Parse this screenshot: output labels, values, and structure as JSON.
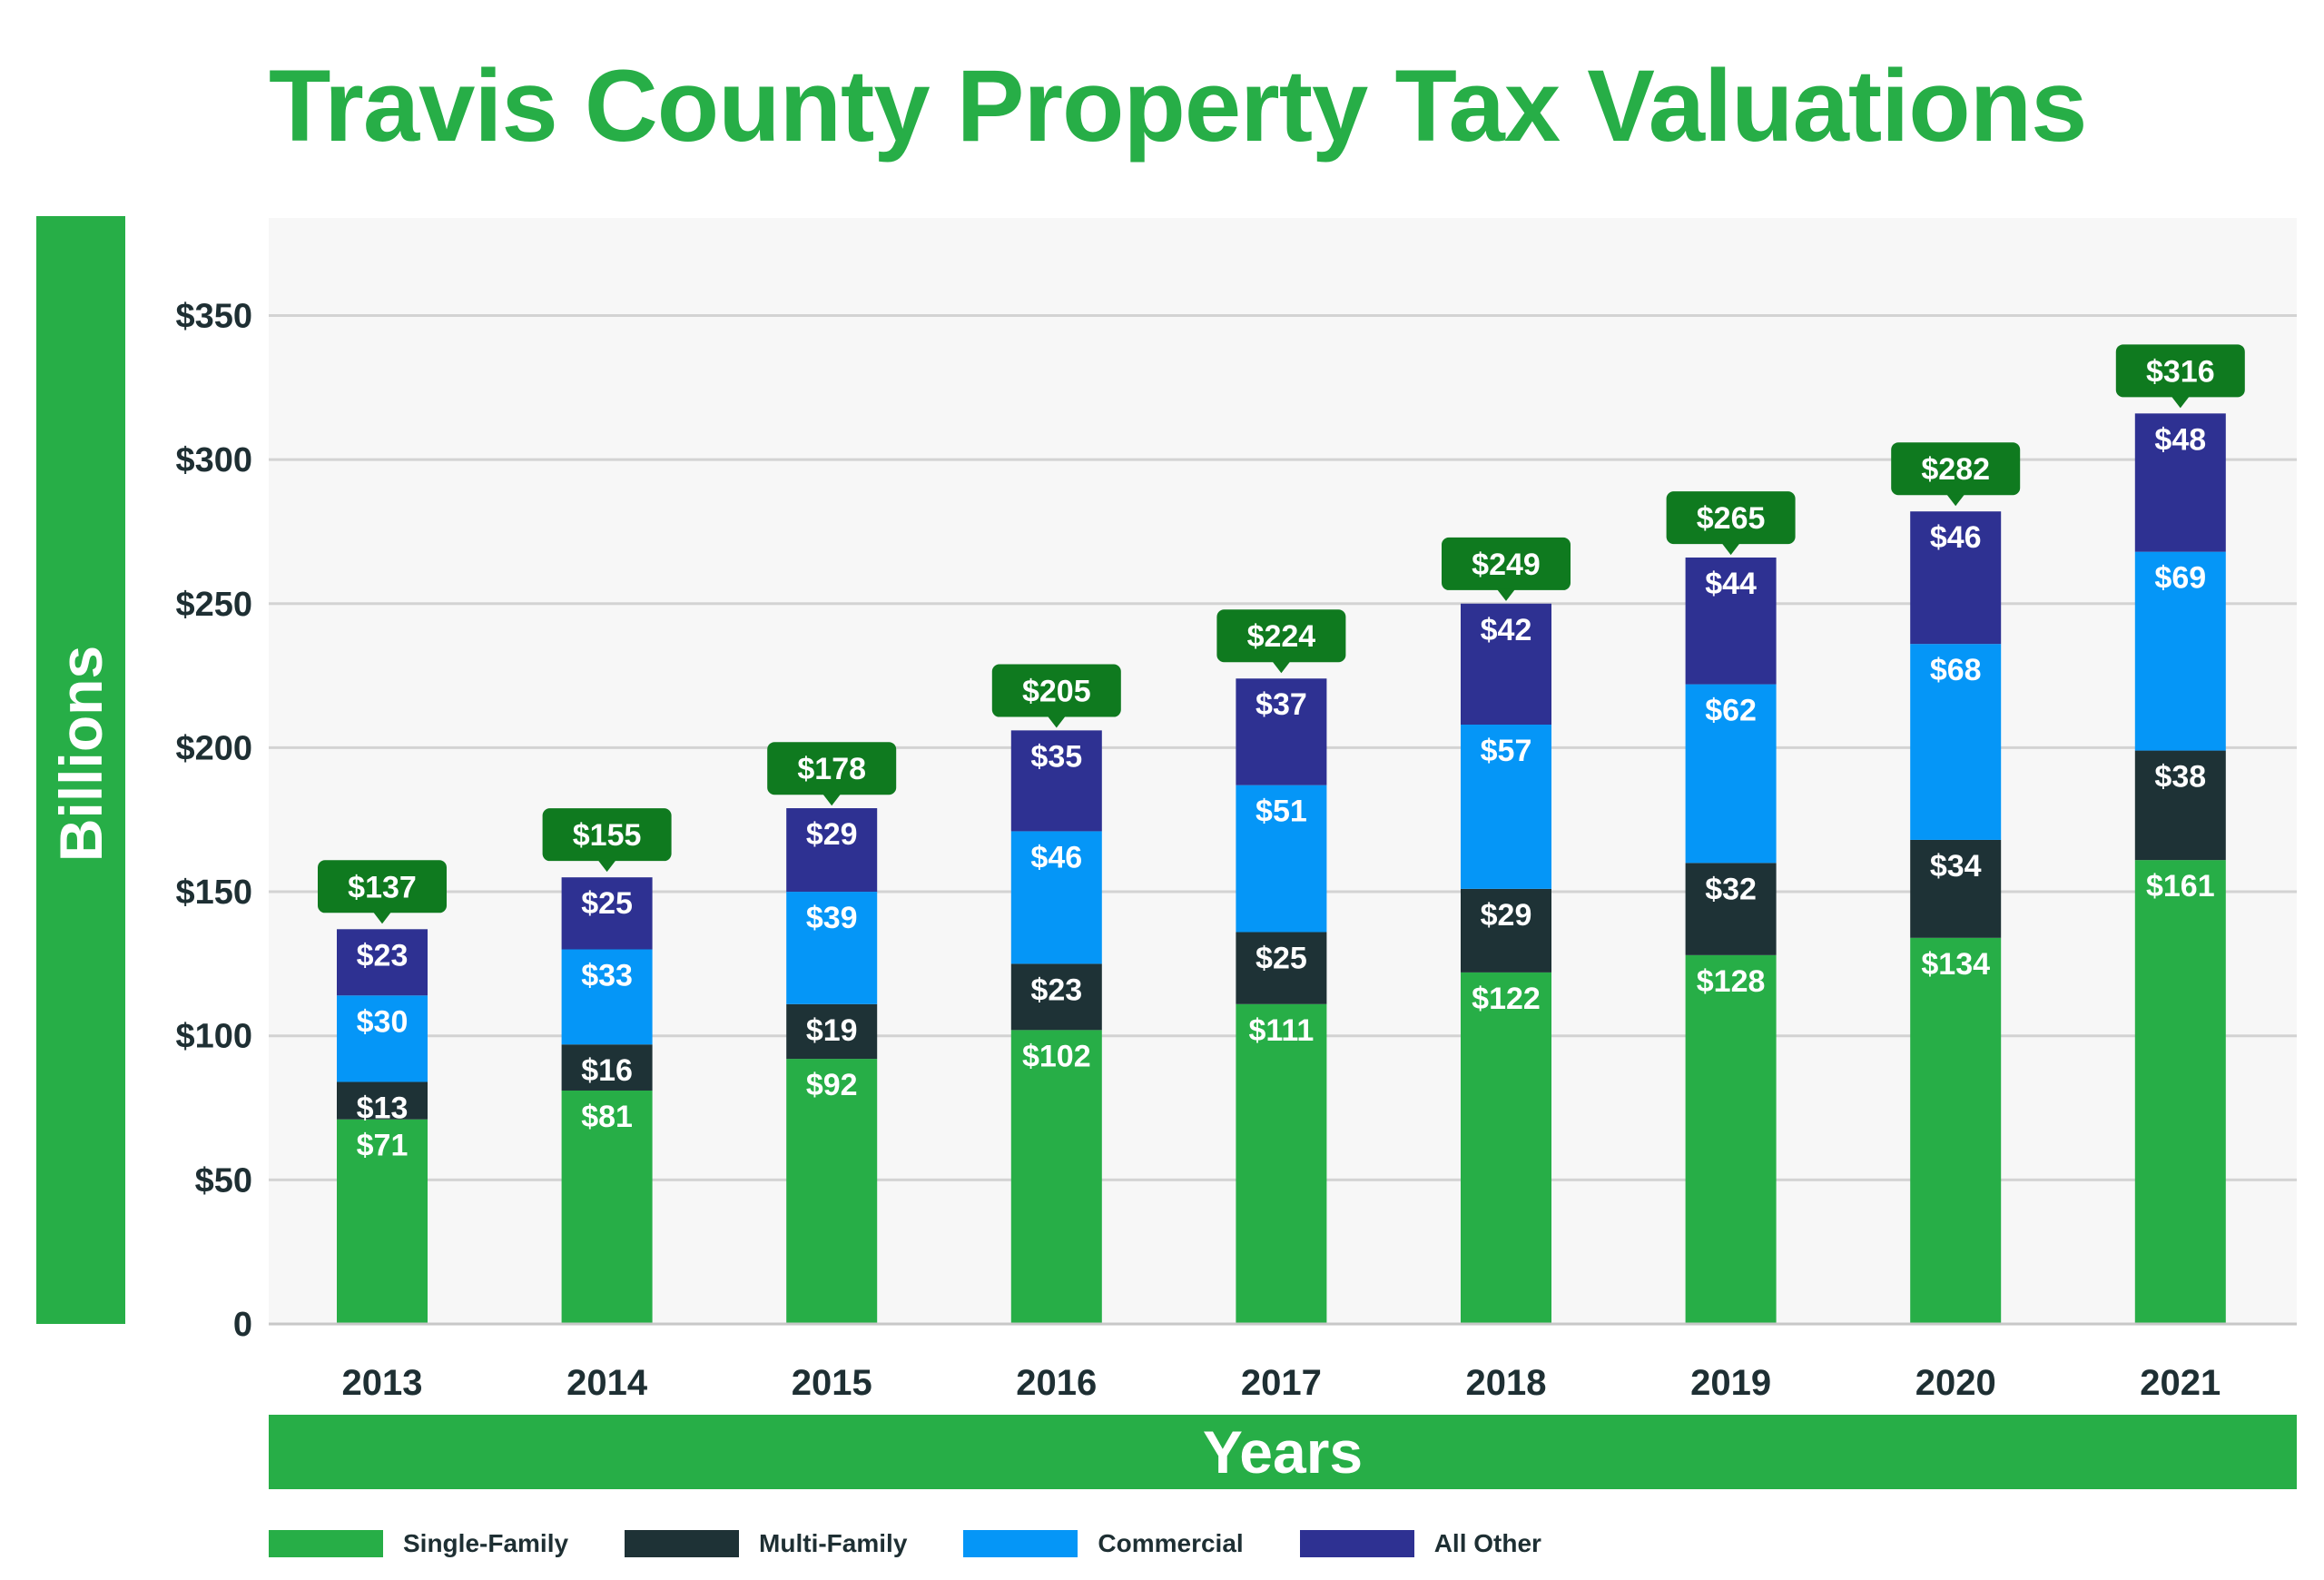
{
  "chart_data": {
    "type": "bar",
    "stacked": true,
    "title": "Travis County Property Tax Valuations",
    "xlabel": "Years",
    "ylabel": "Billions",
    "ylim": [
      0,
      385
    ],
    "yticks": [
      0,
      50,
      100,
      150,
      200,
      250,
      300,
      350
    ],
    "ytick_labels": [
      "0",
      "$50",
      "$100",
      "$150",
      "$200",
      "$250",
      "$300",
      "$350"
    ],
    "grid": true,
    "legend_position": "bottom-left",
    "categories": [
      "2013",
      "2014",
      "2015",
      "2016",
      "2017",
      "2018",
      "2019",
      "2020",
      "2021"
    ],
    "series": [
      {
        "name": "Single-Family",
        "color": "#27ae47",
        "values": [
          71,
          81,
          92,
          102,
          111,
          122,
          128,
          134,
          161
        ],
        "labels": [
          "$71",
          "$81",
          "$92",
          "$102",
          "$111",
          "$122",
          "$128",
          "$134",
          "$161"
        ]
      },
      {
        "name": "Multi-Family",
        "color": "#1e3236",
        "values": [
          13,
          16,
          19,
          23,
          25,
          29,
          32,
          34,
          38
        ],
        "labels": [
          "$13",
          "$16",
          "$19",
          "$23",
          "$25",
          "$29",
          "$32",
          "$34",
          "$38"
        ]
      },
      {
        "name": "Commercial",
        "color": "#0596f7",
        "values": [
          30,
          33,
          39,
          46,
          51,
          57,
          62,
          68,
          69
        ],
        "labels": [
          "$30",
          "$33",
          "$39",
          "$46",
          "$51",
          "$57",
          "$62",
          "$68",
          "$69"
        ]
      },
      {
        "name": "All Other",
        "color": "#2e3192",
        "values": [
          23,
          25,
          29,
          35,
          37,
          42,
          44,
          46,
          48
        ],
        "labels": [
          "$23",
          "$25",
          "$29",
          "$35",
          "$37",
          "$42",
          "$44",
          "$46",
          "$48"
        ]
      }
    ],
    "totals": [
      137,
      155,
      178,
      205,
      224,
      249,
      265,
      282,
      316
    ],
    "total_labels": [
      "$137",
      "$155",
      "$178",
      "$205",
      "$224",
      "$249",
      "$265",
      "$282",
      "$316"
    ],
    "colors": {
      "title": "#27ae47",
      "axis_band": "#27ae47",
      "total_callout": "#0f7a1f",
      "plot_background": "#f7f7f7",
      "grid": "#d3d3d3",
      "tick_text": "#1e2f33"
    }
  }
}
